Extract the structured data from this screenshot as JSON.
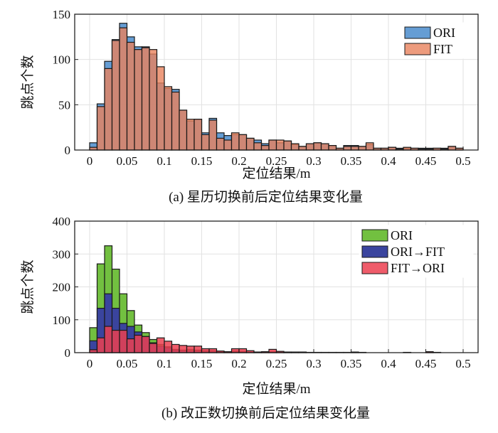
{
  "chart_data": [
    {
      "type": "bar",
      "subtype": "histogram-overlay",
      "caption": "(a) 星历切换前后定位结果变化量",
      "xlabel": "定位结果/m",
      "ylabel": "跳点个数",
      "xlim": [
        -0.02,
        0.52
      ],
      "ylim": [
        0,
        150
      ],
      "xticks": [
        "0",
        "0.05",
        "0.1",
        "0.15",
        "0.2",
        "0.25",
        "0.3",
        "0.35",
        "0.4",
        "0.45",
        "0.5"
      ],
      "yticks": [
        "0",
        "50",
        "100",
        "150"
      ],
      "grid": true,
      "legend_position": "top-right",
      "bin_start": 0,
      "bin_width": 0.01,
      "series": [
        {
          "name": "ORI",
          "color": "#4a8ccc",
          "values": [
            8,
            51,
            98,
            122,
            140,
            125,
            114,
            114,
            106,
            74,
            68,
            67,
            44,
            32,
            34,
            19,
            35,
            19,
            16,
            17,
            17,
            13,
            11,
            7,
            11,
            8,
            10,
            6,
            4,
            7,
            8,
            7,
            5,
            2,
            5,
            5,
            4,
            6,
            2,
            2,
            3,
            2,
            2,
            2,
            2,
            2,
            2,
            2,
            4,
            2
          ]
        },
        {
          "name": "FIT",
          "color": "#e9825c",
          "values": [
            3,
            48,
            90,
            121,
            135,
            119,
            111,
            113,
            111,
            92,
            70,
            64,
            44,
            34,
            34,
            17,
            33,
            13,
            11,
            19,
            17,
            13,
            8,
            5,
            11,
            11,
            10,
            7,
            4,
            7,
            8,
            7,
            5,
            2,
            4,
            4,
            4,
            8,
            2,
            2,
            3,
            1,
            3,
            2,
            1,
            1,
            2,
            1,
            4,
            2
          ]
        }
      ]
    },
    {
      "type": "bar",
      "subtype": "histogram-overlay",
      "caption": "(b) 改正数切换前后定位结果变化量",
      "xlabel": "定位结果/m",
      "ylabel": "跳点个数",
      "xlim": [
        -0.02,
        0.52
      ],
      "ylim": [
        0,
        400
      ],
      "xticks": [
        "0",
        "0.05",
        "0.1",
        "0.15",
        "0.2",
        "0.25",
        "0.3",
        "0.35",
        "0.4",
        "0.45",
        "0.5"
      ],
      "yticks": [
        "0",
        "100",
        "200",
        "300",
        "400"
      ],
      "grid": true,
      "legend_position": "top-right",
      "bin_start": 0,
      "bin_width": 0.01,
      "series": [
        {
          "name": "ORI",
          "color": "#72c040",
          "values": [
            76,
            270,
            325,
            254,
            179,
            128,
            84,
            61,
            40,
            25,
            18,
            10,
            8,
            10,
            8,
            6,
            6,
            4,
            3,
            5,
            4,
            2,
            2,
            2,
            3,
            2,
            2,
            1,
            1,
            0,
            0,
            0,
            0,
            0,
            0,
            1,
            0,
            0,
            0,
            0,
            0,
            0,
            0,
            0,
            0,
            1,
            0,
            0,
            0,
            0
          ]
        },
        {
          "name": "ORI→FIT",
          "color": "#3a449e",
          "values": [
            36,
            135,
            179,
            135,
            89,
            80,
            63,
            49,
            30,
            20,
            15,
            8,
            6,
            6,
            5,
            4,
            4,
            2,
            2,
            3,
            3,
            1,
            1,
            1,
            2,
            1,
            1,
            1,
            0,
            0,
            0,
            0,
            0,
            0,
            0,
            0,
            0,
            0,
            0,
            0,
            0,
            0,
            0,
            0,
            0,
            0,
            0,
            0,
            0,
            0
          ]
        },
        {
          "name": "FIT→ORI",
          "color": "#ec4050",
          "values": [
            9,
            45,
            80,
            68,
            68,
            42,
            53,
            49,
            28,
            45,
            35,
            25,
            22,
            20,
            20,
            12,
            12,
            5,
            3,
            12,
            12,
            6,
            2,
            3,
            10,
            4,
            2,
            2,
            2,
            1,
            1,
            1,
            1,
            1,
            1,
            2,
            1,
            0,
            0,
            0,
            0,
            0,
            1,
            0,
            0,
            3,
            1,
            0,
            0,
            0
          ]
        }
      ]
    }
  ]
}
